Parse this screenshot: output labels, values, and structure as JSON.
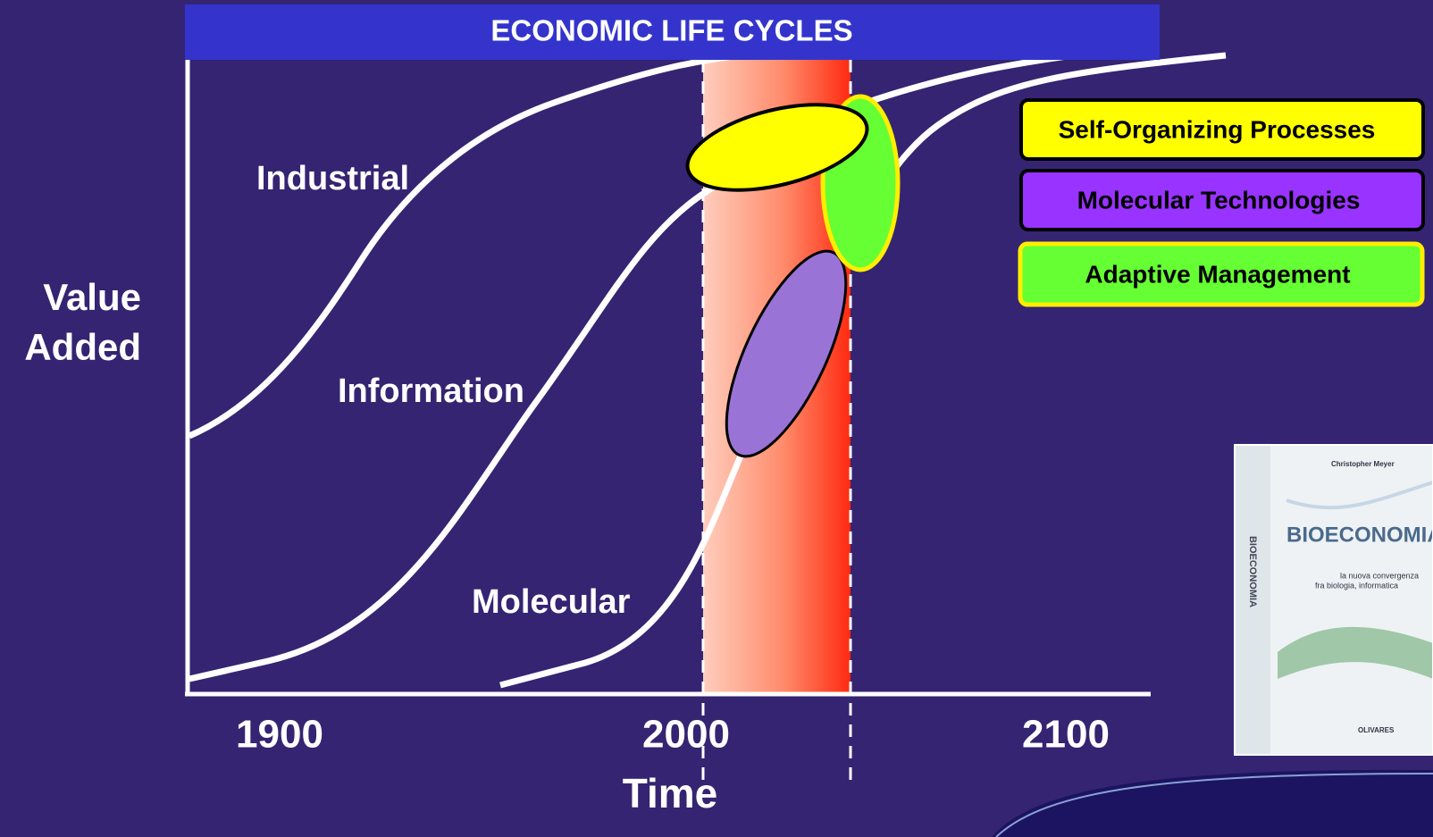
{
  "header": {
    "title": "ECONOMIC LIFE CYCLES"
  },
  "axes": {
    "y_label": [
      "Value",
      "Added"
    ],
    "x_label": "Time",
    "x_ticks": [
      "1900",
      "2000",
      "2100"
    ]
  },
  "curves": [
    {
      "label": "Industrial"
    },
    {
      "label": "Information"
    },
    {
      "label": "Molecular"
    }
  ],
  "legend": [
    {
      "label": "Self-Organizing Processes"
    },
    {
      "label": "Molecular Technologies"
    },
    {
      "label": "Adaptive Management"
    }
  ],
  "book": {
    "author": "Christopher Meyer",
    "spine": "BIOECONOMIA",
    "title": "BIOECONOMIA",
    "subtitle": [
      "la nuova convergenza",
      "fra biologia, informatica"
    ],
    "publisher": "OLIVARES"
  }
}
